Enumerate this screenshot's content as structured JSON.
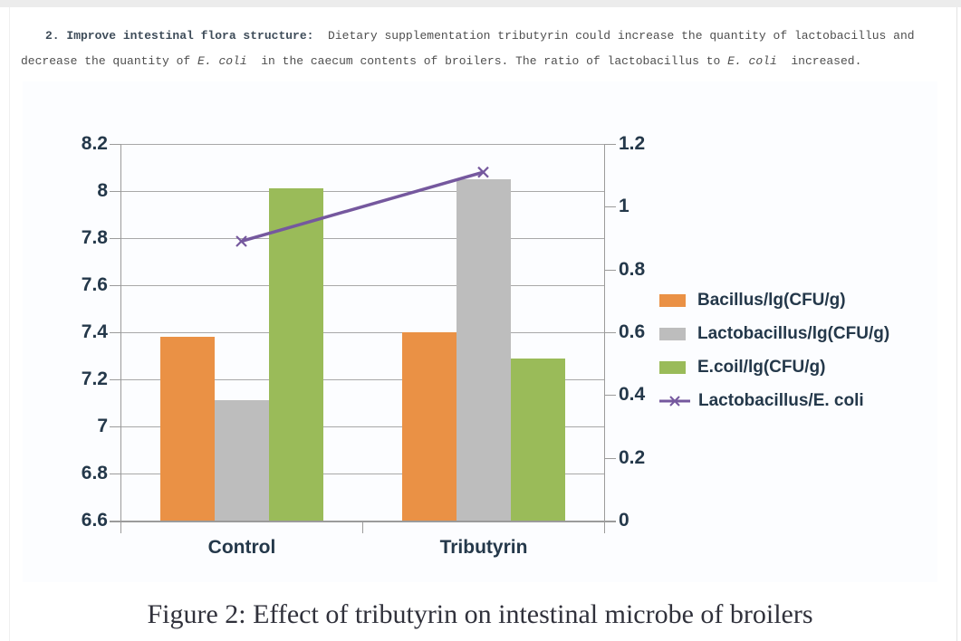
{
  "page": {
    "paragraph": {
      "lines": [
        {
          "segments": [
            {
              "t": "2. Improve intestinal flora structure:",
              "s": "bold"
            },
            {
              "t": "  Dietary supplementation tributyrin could increase the quantity of lactobacillus and",
              "s": "normal"
            }
          ]
        },
        {
          "segments": [
            {
              "t": "decrease the quantity of ",
              "s": "normal"
            },
            {
              "t": "E. coli",
              "s": "italic"
            },
            {
              "t": "  in the caecum contents of broilers. The ratio of lactobacillus to ",
              "s": "normal"
            },
            {
              "t": "E. coli",
              "s": "italic"
            },
            {
              "t": "  increased.",
              "s": "normal"
            }
          ]
        }
      ]
    },
    "caption": "Figure 2: Effect of tributyrin on intestinal microbe of broilers"
  },
  "chart_data": {
    "type": "bar+line (dual axis)",
    "categories": [
      "Control",
      "Tributyrin"
    ],
    "bar_series": [
      {
        "name": "Bacillus/lg(CFU/g)",
        "color": "#EA9145",
        "axis": "left",
        "values": [
          7.38,
          7.4
        ]
      },
      {
        "name": "Lactobacillus/lg(CFU/g)",
        "color": "#BDBDBD",
        "axis": "left",
        "values": [
          7.11,
          8.05
        ]
      },
      {
        "name": "E.coil/lg(CFU/g)",
        "color": "#9ABB59",
        "axis": "left",
        "values": [
          8.01,
          7.29
        ]
      }
    ],
    "line_series": [
      {
        "name": "Lactobacillus/E. coli",
        "color": "#75589E",
        "marker": "x",
        "axis": "right",
        "values": [
          0.89,
          1.11
        ]
      }
    ],
    "left_axis": {
      "min": 6.6,
      "max": 8.2,
      "ticks": [
        "8.2",
        "8",
        "7.8",
        "7.6",
        "7.4",
        "7.2",
        "7",
        "6.8",
        "6.6"
      ],
      "tick_values": [
        8.2,
        8.0,
        7.8,
        7.6,
        7.4,
        7.2,
        7.0,
        6.8,
        6.6
      ]
    },
    "right_axis": {
      "min": 0,
      "max": 1.2,
      "ticks": [
        "1.2",
        "1",
        "0.8",
        "0.6",
        "0.4",
        "0.2",
        "0"
      ],
      "tick_values": [
        1.2,
        1.0,
        0.8,
        0.6,
        0.4,
        0.2,
        0.0
      ]
    },
    "grid": true,
    "grid_color": "#A8A8A8",
    "axis_text_color": "#24384A",
    "legend_position": "right"
  }
}
